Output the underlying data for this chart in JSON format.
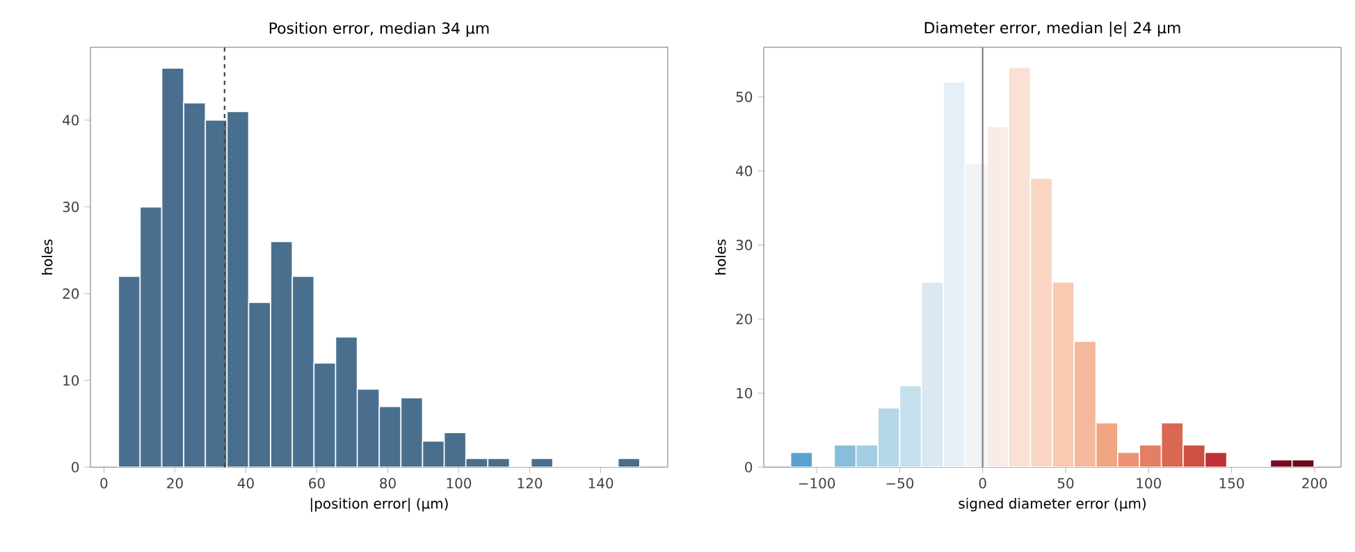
{
  "chart_data": [
    {
      "type": "histogram",
      "title": "Position error, median 34 µm",
      "xlabel": "|position error| (µm)",
      "ylabel": "holes",
      "color": "#4a6f8e",
      "bins": [
        4.1,
        10.2,
        16.3,
        22.5,
        28.6,
        34.7,
        40.8,
        47.0,
        53.1,
        59.2,
        65.3,
        71.4,
        77.6,
        83.7,
        89.8,
        95.9,
        102.0,
        108.2,
        114.3,
        120.4,
        126.5,
        144.9,
        151.0
      ],
      "values": [
        22,
        30,
        46,
        42,
        40,
        41,
        19,
        26,
        22,
        12,
        15,
        9,
        7,
        8,
        3,
        4,
        1,
        1,
        0,
        1,
        0,
        1
      ],
      "xlim": [
        -3.8,
        158.9
      ],
      "ylim": [
        0,
        48.4
      ],
      "xticks": [
        0,
        20,
        40,
        60,
        80,
        100,
        120,
        140
      ],
      "yticks": [
        0,
        10,
        20,
        30,
        40
      ],
      "ref_lines": [
        {
          "axis": "x",
          "value": 34,
          "color": "#444444",
          "line_style": "dashed"
        }
      ]
    },
    {
      "type": "histogram",
      "title": "Diameter error, median |e| 24 µm",
      "xlabel": "signed diameter error (µm)",
      "ylabel": "holes",
      "bins": [
        -115.7,
        -102.6,
        -89.4,
        -76.3,
        -63.1,
        -50.0,
        -36.9,
        -23.7,
        -10.6,
        2.6,
        15.7,
        28.8,
        42.0,
        55.1,
        68.3,
        81.4,
        94.5,
        107.7,
        120.8,
        134.0,
        147.1,
        173.4,
        186.5,
        199.7
      ],
      "values": [
        2,
        0,
        3,
        3,
        8,
        11,
        25,
        52,
        41,
        46,
        54,
        39,
        25,
        17,
        6,
        2,
        3,
        6,
        3,
        2,
        0,
        1,
        1
      ],
      "colors": [
        "#5aa1cf",
        "#70b0d6",
        "#86bedc",
        "#a3cde3",
        "#b5d7e8",
        "#c6dfec",
        "#d9e8f1",
        "#e6eff5",
        "#f2f3f5",
        "#f8ece8",
        "#f9e1d5",
        "#fad6c3",
        "#f9c9b0",
        "#f6b89a",
        "#f1a583",
        "#eb9273",
        "#e47f64",
        "#d96752",
        "#cc5142",
        "#be3235",
        "#ad1f2e",
        "#7e0a22",
        "#680a1d"
      ],
      "xlim": [
        -131.9,
        216.0
      ],
      "ylim": [
        0,
        56.7
      ],
      "xticks": [
        {
          "value": -100,
          "label": "−100"
        },
        {
          "value": -50,
          "label": "−50"
        },
        0,
        50,
        100,
        150,
        200
      ],
      "yticks": [
        0,
        10,
        20,
        30,
        40,
        50
      ],
      "ref_lines": [
        {
          "axis": "x",
          "value": 0,
          "color": "#808080",
          "line_style": "solid"
        }
      ]
    }
  ]
}
